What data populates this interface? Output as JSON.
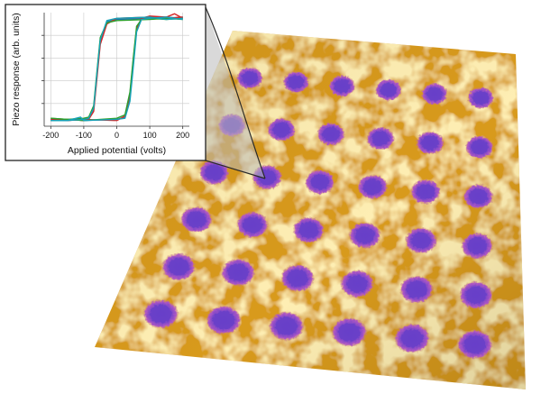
{
  "chart_data": {
    "type": "line",
    "title": "",
    "xlabel": "Applied potential (volts)",
    "ylabel": "Piezo response (arb. units)",
    "xlim": [
      -220,
      220
    ],
    "ylim": [
      0,
      1
    ],
    "grid": true,
    "x_ticks": [
      -200,
      -100,
      0,
      100,
      200
    ],
    "x_tick_labels": [
      "-200",
      "-100",
      "0",
      "100",
      "200"
    ],
    "series": [
      {
        "color": "#1f77b4",
        "forward": {
          "x": [
            -200,
            -150,
            -100,
            0,
            25,
            40,
            50,
            60,
            75,
            100,
            150,
            200
          ],
          "y": [
            0.05,
            0.06,
            0.05,
            0.06,
            0.08,
            0.25,
            0.55,
            0.85,
            0.95,
            0.96,
            0.95,
            0.96
          ]
        },
        "reverse": {
          "x": [
            200,
            150,
            100,
            0,
            -30,
            -50,
            -60,
            -70,
            -85,
            -100,
            -150,
            -200
          ],
          "y": [
            0.95,
            0.96,
            0.95,
            0.94,
            0.92,
            0.75,
            0.45,
            0.15,
            0.07,
            0.06,
            0.05,
            0.06
          ]
        }
      },
      {
        "color": "#d62728",
        "forward": {
          "x": [
            -200,
            -150,
            -100,
            0,
            25,
            40,
            50,
            60,
            75,
            100,
            150,
            175,
            200
          ],
          "y": [
            0.06,
            0.05,
            0.06,
            0.05,
            0.09,
            0.28,
            0.58,
            0.86,
            0.95,
            0.97,
            0.96,
            0.99,
            0.95
          ]
        },
        "reverse": {
          "x": [
            200,
            150,
            100,
            0,
            -30,
            -50,
            -60,
            -70,
            -85,
            -100,
            -150,
            -200
          ],
          "y": [
            0.96,
            0.95,
            0.96,
            0.95,
            0.9,
            0.72,
            0.42,
            0.13,
            0.06,
            0.05,
            0.06,
            0.05
          ]
        }
      },
      {
        "color": "#2ca02c",
        "forward": {
          "x": [
            -200,
            -150,
            -100,
            0,
            25,
            40,
            50,
            60,
            75,
            100,
            150,
            200
          ],
          "y": [
            0.07,
            0.06,
            0.05,
            0.07,
            0.1,
            0.3,
            0.6,
            0.88,
            0.94,
            0.95,
            0.94,
            0.95
          ]
        },
        "reverse": {
          "x": [
            200,
            150,
            100,
            0,
            -30,
            -50,
            -60,
            -70,
            -85,
            -100,
            -150,
            -200
          ],
          "y": [
            0.94,
            0.95,
            0.94,
            0.93,
            0.91,
            0.78,
            0.48,
            0.18,
            0.08,
            0.07,
            0.06,
            0.07
          ]
        }
      },
      {
        "color": "#17a2b8",
        "forward": {
          "x": [
            -200,
            -150,
            -110,
            -100,
            0,
            25,
            40,
            50,
            60,
            75,
            100,
            150,
            200
          ],
          "y": [
            0.05,
            0.05,
            0.08,
            0.05,
            0.06,
            0.07,
            0.22,
            0.52,
            0.83,
            0.94,
            0.95,
            0.96,
            0.94
          ]
        },
        "reverse": {
          "x": [
            200,
            150,
            100,
            0,
            -30,
            -50,
            -60,
            -70,
            -85,
            -100,
            -150,
            -200
          ],
          "y": [
            0.95,
            0.94,
            0.96,
            0.95,
            0.93,
            0.76,
            0.46,
            0.16,
            0.07,
            0.06,
            0.05,
            0.05
          ]
        }
      }
    ]
  },
  "surface": {
    "base_color": "#d89a1e",
    "dot_color": "#6b3fc8",
    "dot_rows": [
      6,
      6,
      6,
      6,
      6,
      6
    ]
  }
}
